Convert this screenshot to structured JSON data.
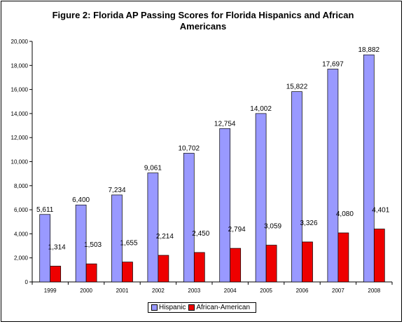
{
  "chart_data": {
    "type": "bar",
    "title": "Figure 2: Florida AP Passing Scores for Florida Hispanics and African Americans",
    "categories": [
      "1999",
      "2000",
      "2001",
      "2002",
      "2003",
      "2004",
      "2005",
      "2006",
      "2007",
      "2008"
    ],
    "series": [
      {
        "name": "Hispanic",
        "color": "#9999ff",
        "values": [
          5611,
          6400,
          7234,
          9061,
          10702,
          12754,
          14002,
          15822,
          17697,
          18882
        ],
        "labels": [
          "5,611",
          "6,400",
          "7,234",
          "9,061",
          "10,702",
          "12,754",
          "14,002",
          "15,822",
          "17,697",
          "18,882"
        ]
      },
      {
        "name": "African-American",
        "color": "#ee0000",
        "values": [
          1314,
          1503,
          1655,
          2214,
          2450,
          2794,
          3059,
          3326,
          4080,
          4401
        ],
        "labels": [
          "1,314",
          "1,503",
          "1,655",
          "2,214",
          "2,450",
          "2,794",
          "3,059",
          "3,326",
          "4,080",
          "4,401"
        ]
      }
    ],
    "yticks": [
      "0",
      "2,000",
      "4,000",
      "6,000",
      "8,000",
      "10,000",
      "12,000",
      "14,000",
      "16,000",
      "18,000",
      "20,000"
    ],
    "ylim": [
      0,
      20000
    ],
    "grid": false,
    "legend_position": "bottom"
  }
}
